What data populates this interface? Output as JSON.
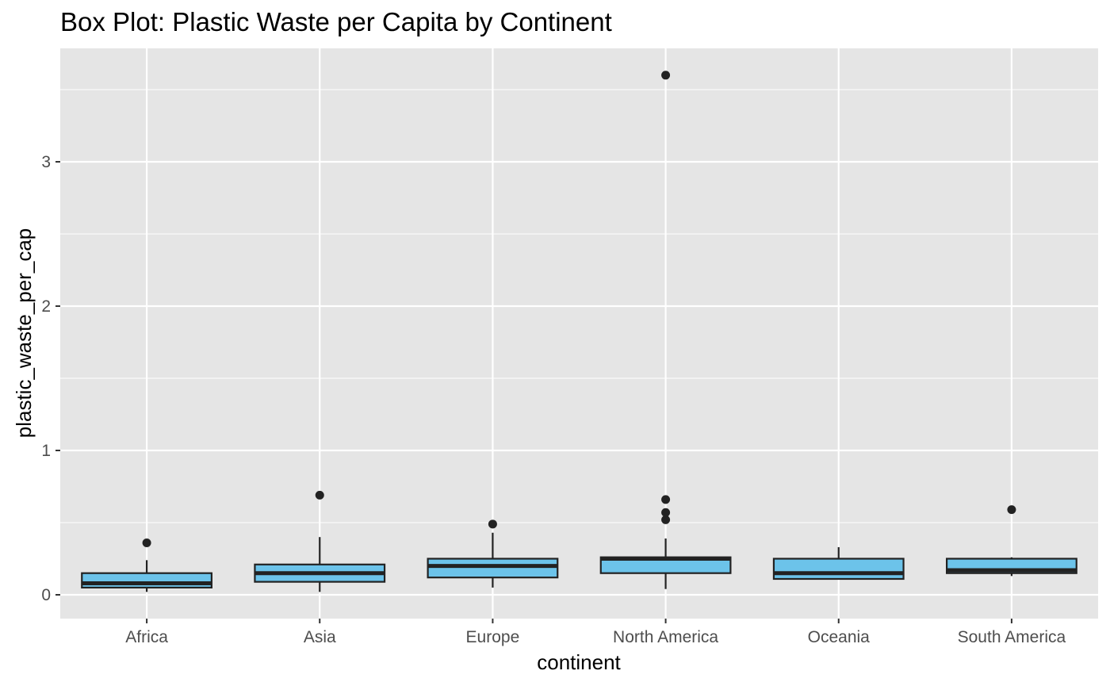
{
  "chart_data": {
    "type": "box",
    "title": "Box Plot: Plastic Waste per Capita by Continent",
    "xlabel": "continent",
    "ylabel": "plastic_waste_per_cap",
    "ylim": [
      -0.05,
      3.76
    ],
    "y_ticks": [
      0,
      1,
      2,
      3
    ],
    "y_tick_labels": [
      "0",
      "1",
      "2",
      "3"
    ],
    "grid": true,
    "box_fill": "#6CC3EA",
    "box_stroke": "#222222",
    "panel_background": "#E5E5E5",
    "categories": [
      "Africa",
      "Asia",
      "Europe",
      "North America",
      "Oceania",
      "South America"
    ],
    "boxes": [
      {
        "category": "Africa",
        "whisker_low": 0.02,
        "q1": 0.05,
        "median": 0.08,
        "q3": 0.15,
        "whisker_high": 0.24,
        "outliers": [
          0.36
        ]
      },
      {
        "category": "Asia",
        "whisker_low": 0.02,
        "q1": 0.09,
        "median": 0.15,
        "q3": 0.21,
        "whisker_high": 0.4,
        "outliers": [
          0.69
        ]
      },
      {
        "category": "Europe",
        "whisker_low": 0.05,
        "q1": 0.12,
        "median": 0.2,
        "q3": 0.25,
        "whisker_high": 0.43,
        "outliers": [
          0.49
        ]
      },
      {
        "category": "North America",
        "whisker_low": 0.04,
        "q1": 0.15,
        "median": 0.25,
        "q3": 0.26,
        "whisker_high": 0.39,
        "outliers": [
          0.52,
          0.57,
          0.66,
          3.6
        ]
      },
      {
        "category": "Oceania",
        "whisker_low": 0.11,
        "q1": 0.11,
        "median": 0.15,
        "q3": 0.25,
        "whisker_high": 0.33,
        "outliers": []
      },
      {
        "category": "South America",
        "whisker_low": 0.13,
        "q1": 0.15,
        "median": 0.17,
        "q3": 0.25,
        "whisker_high": 0.26,
        "outliers": [
          0.59
        ]
      }
    ]
  }
}
